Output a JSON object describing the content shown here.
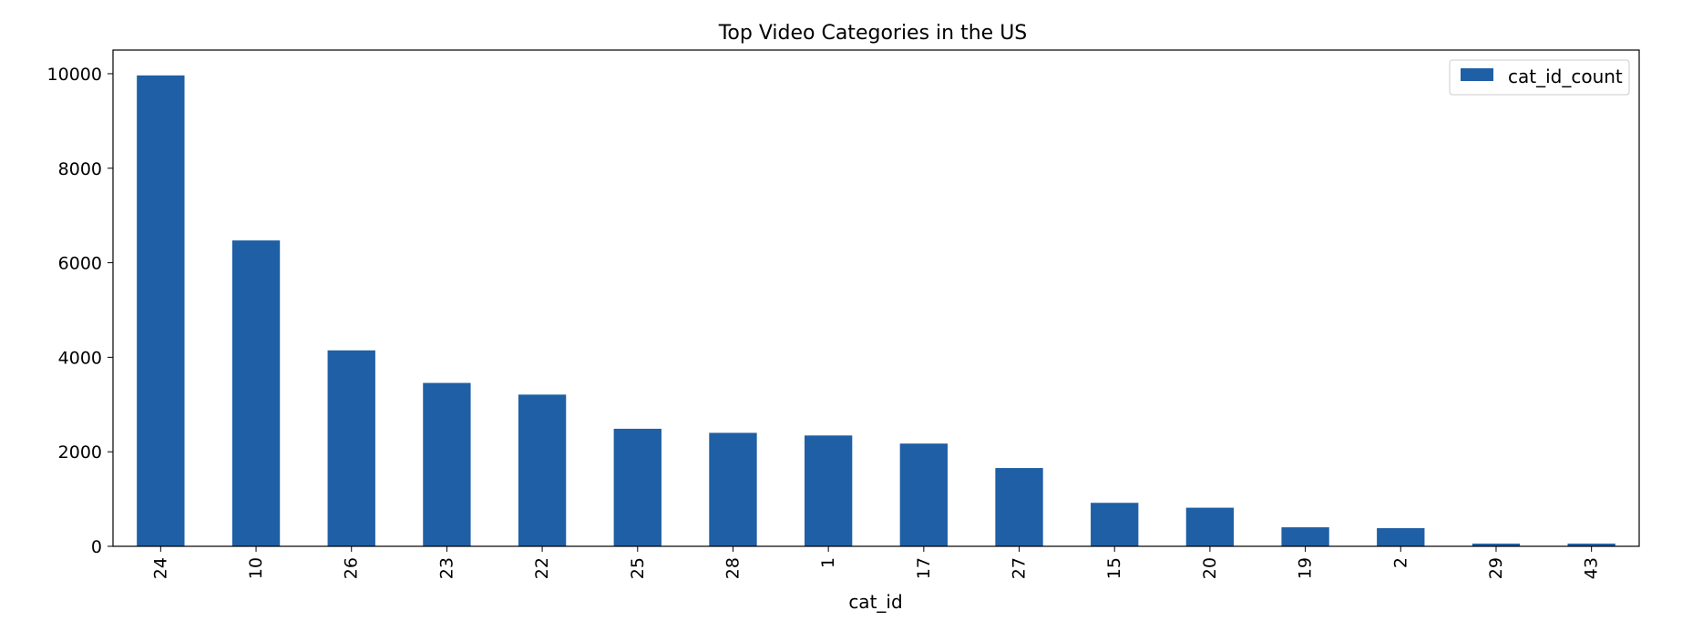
{
  "chart_data": {
    "type": "bar",
    "title": "Top Video Categories in the US",
    "xlabel": "cat_id",
    "ylabel": "",
    "categories": [
      "24",
      "10",
      "26",
      "23",
      "22",
      "25",
      "28",
      "1",
      "17",
      "27",
      "15",
      "20",
      "19",
      "2",
      "29",
      "43"
    ],
    "series": [
      {
        "name": "cat_id_count",
        "values": [
          9964,
          6472,
          4146,
          3457,
          3210,
          2487,
          2401,
          2345,
          2174,
          1656,
          920,
          817,
          402,
          384,
          57,
          57
        ],
        "color": "#1f5fa5"
      }
    ],
    "ylim": [
      0,
      10500
    ],
    "yticks": [
      0,
      2000,
      4000,
      6000,
      8000,
      10000
    ],
    "grid": false,
    "legend_position": "top-right"
  }
}
